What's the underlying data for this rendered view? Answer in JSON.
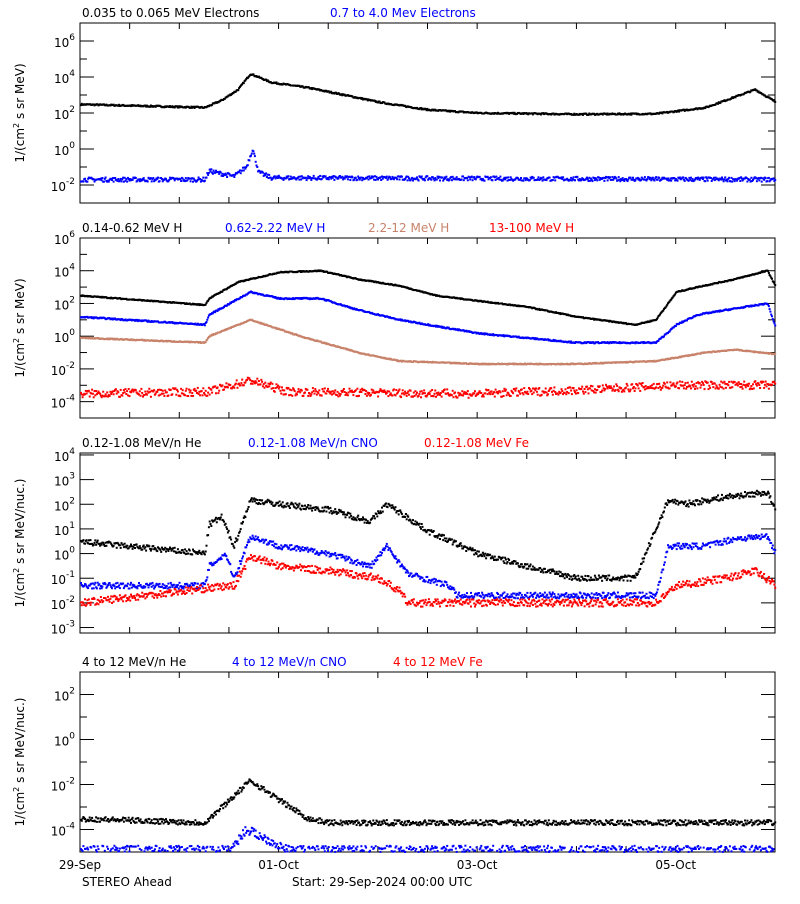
{
  "footer": {
    "spacecraft": "STEREO Ahead",
    "start": "Start: 29-Sep-2024 00:00 UTC"
  },
  "colors": {
    "black": "#000000",
    "blue": "#0000ff",
    "brown": "#c8826a",
    "red": "#ff0000"
  },
  "chart_data": [
    {
      "type": "scatter",
      "ylabel": "1/(cm² s sr MeV)",
      "ylabel_base": "1/(cm",
      "ylabel_sup": "2",
      "ylabel_rest": " s sr MeV)",
      "yscale": "log",
      "ylim": [
        0.001,
        10000000
      ],
      "xlim": [
        "2024-09-29 00:00",
        "2024-10-06 00:00"
      ],
      "yticks": [
        {
          "b": "10",
          "e": "6",
          "v": 1000000.0
        },
        {
          "b": "10",
          "e": "4",
          "v": 10000.0
        },
        {
          "b": "10",
          "e": "2",
          "v": 100.0
        },
        {
          "b": "10",
          "e": "0",
          "v": 1
        },
        {
          "b": "10",
          "e": "-2",
          "v": 0.01
        }
      ],
      "series": [
        {
          "name": "0.035 to 0.065 MeV Electrons",
          "color": "black",
          "points": [
            [
              "2024-09-29 00:00",
              300
            ],
            [
              "2024-09-30 06:00",
              200
            ],
            [
              "2024-09-30 10:00",
              500
            ],
            [
              "2024-09-30 14:00",
              2000
            ],
            [
              "2024-09-30 17:00",
              15000
            ],
            [
              "2024-09-30 22:00",
              5000
            ],
            [
              "2024-10-01 07:00",
              2500
            ],
            [
              "2024-10-01 14:00",
              1200
            ],
            [
              "2024-10-02 00:00",
              400
            ],
            [
              "2024-10-02 12:00",
              150
            ],
            [
              "2024-10-03 00:00",
              100
            ],
            [
              "2024-10-04 00:00",
              85
            ],
            [
              "2024-10-04 19:00",
              90
            ],
            [
              "2024-10-05 07:00",
              200
            ],
            [
              "2024-10-05 19:00",
              2000
            ],
            [
              "2024-10-06 00:00",
              400
            ]
          ]
        },
        {
          "name": "0.7 to 4.0 Mev Electrons",
          "color": "blue",
          "points": [
            [
              "2024-09-29 00:00",
              0.02
            ],
            [
              "2024-09-30 06:00",
              0.02
            ],
            [
              "2024-09-30 07:00",
              0.06
            ],
            [
              "2024-09-30 13:00",
              0.03
            ],
            [
              "2024-09-30 16:00",
              0.1
            ],
            [
              "2024-09-30 17:30",
              1
            ],
            [
              "2024-09-30 19:00",
              0.05
            ],
            [
              "2024-09-30 22:00",
              0.025
            ],
            [
              "2024-10-06 00:00",
              0.02
            ]
          ]
        }
      ]
    },
    {
      "type": "scatter",
      "ylabel_base": "1/(cm",
      "ylabel_sup": "2",
      "ylabel_rest": " s sr MeV)",
      "yscale": "log",
      "ylim": [
        1e-05,
        1000000
      ],
      "xlim": [
        "2024-09-29 00:00",
        "2024-10-06 00:00"
      ],
      "yticks": [
        {
          "b": "10",
          "e": "6",
          "v": 1000000.0
        },
        {
          "b": "10",
          "e": "4",
          "v": 10000.0
        },
        {
          "b": "10",
          "e": "2",
          "v": 100.0
        },
        {
          "b": "10",
          "e": "0",
          "v": 1
        },
        {
          "b": "10",
          "e": "-2",
          "v": 0.01
        },
        {
          "b": "10",
          "e": "-4",
          "v": 0.0001
        }
      ],
      "series": [
        {
          "name": "0.14-0.62 MeV H",
          "color": "black",
          "points": [
            [
              "2024-09-29 00:00",
              300
            ],
            [
              "2024-09-30 06:00",
              80
            ],
            [
              "2024-09-30 07:00",
              200
            ],
            [
              "2024-09-30 14:00",
              2000
            ],
            [
              "2024-10-01 00:00",
              8000
            ],
            [
              "2024-10-01 10:00",
              10000
            ],
            [
              "2024-10-01 19:00",
              3000
            ],
            [
              "2024-10-02 05:00",
              1200
            ],
            [
              "2024-10-02 14:00",
              300
            ],
            [
              "2024-10-03 12:00",
              60
            ],
            [
              "2024-10-04 00:00",
              15
            ],
            [
              "2024-10-04 14:00",
              5
            ],
            [
              "2024-10-04 19:00",
              10
            ],
            [
              "2024-10-05 00:00",
              500
            ],
            [
              "2024-10-05 05:00",
              1000
            ],
            [
              "2024-10-05 14:00",
              3000
            ],
            [
              "2024-10-05 22:00",
              10000
            ],
            [
              "2024-10-06 00:00",
              1000
            ]
          ]
        },
        {
          "name": "0.62-2.22 MeV H",
          "color": "blue",
          "points": [
            [
              "2024-09-29 00:00",
              15
            ],
            [
              "2024-09-30 06:00",
              5
            ],
            [
              "2024-09-30 07:00",
              20
            ],
            [
              "2024-09-30 17:00",
              500
            ],
            [
              "2024-10-01 00:00",
              200
            ],
            [
              "2024-10-01 10:00",
              200
            ],
            [
              "2024-10-01 19:00",
              40
            ],
            [
              "2024-10-02 05:00",
              10
            ],
            [
              "2024-10-03 00:00",
              1.5
            ],
            [
              "2024-10-04 00:00",
              0.4
            ],
            [
              "2024-10-04 19:00",
              0.4
            ],
            [
              "2024-10-05 00:00",
              5
            ],
            [
              "2024-10-05 05:00",
              20
            ],
            [
              "2024-10-05 12:00",
              40
            ],
            [
              "2024-10-05 22:00",
              100
            ],
            [
              "2024-10-06 00:00",
              3
            ]
          ]
        },
        {
          "name": "2.2-12 MeV H",
          "color": "brown",
          "points": [
            [
              "2024-09-29 00:00",
              0.8
            ],
            [
              "2024-09-30 06:00",
              0.4
            ],
            [
              "2024-09-30 07:00",
              1
            ],
            [
              "2024-09-30 17:00",
              10
            ],
            [
              "2024-10-01 05:00",
              1
            ],
            [
              "2024-10-01 19:00",
              0.1
            ],
            [
              "2024-10-02 05:00",
              0.03
            ],
            [
              "2024-10-03 00:00",
              0.02
            ],
            [
              "2024-10-04 00:00",
              0.02
            ],
            [
              "2024-10-04 19:00",
              0.03
            ],
            [
              "2024-10-05 07:00",
              0.1
            ],
            [
              "2024-10-05 14:00",
              0.15
            ],
            [
              "2024-10-06 00:00",
              0.08
            ]
          ]
        },
        {
          "name": "13-100 MeV H",
          "color": "red",
          "points": [
            [
              "2024-09-29 00:00",
              0.0003
            ],
            [
              "2024-09-30 07:00",
              0.0004
            ],
            [
              "2024-09-30 17:00",
              0.002
            ],
            [
              "2024-10-01 02:00",
              0.0004
            ],
            [
              "2024-10-03 00:00",
              0.0003
            ],
            [
              "2024-10-04 00:00",
              0.0005
            ],
            [
              "2024-10-05 00:00",
              0.001
            ],
            [
              "2024-10-06 00:00",
              0.001
            ]
          ]
        }
      ]
    },
    {
      "type": "scatter",
      "ylabel_base": "1/(cm",
      "ylabel_sup": "2",
      "ylabel_rest": " s sr MeV/nuc.)",
      "yscale": "log",
      "ylim": [
        0.0006,
        12000
      ],
      "xlim": [
        "2024-09-29 00:00",
        "2024-10-06 00:00"
      ],
      "yticks": [
        {
          "b": "10",
          "e": "4",
          "v": 10000.0
        },
        {
          "b": "10",
          "e": "3",
          "v": 1000.0
        },
        {
          "b": "10",
          "e": "2",
          "v": 100.0
        },
        {
          "b": "10",
          "e": "1",
          "v": 10
        },
        {
          "b": "10",
          "e": "0",
          "v": 1
        },
        {
          "b": "10",
          "e": "-1",
          "v": 0.1
        },
        {
          "b": "10",
          "e": "-2",
          "v": 0.01
        },
        {
          "b": "10",
          "e": "-3",
          "v": 0.001
        }
      ],
      "series": [
        {
          "name": "0.12-1.08 MeV/n He",
          "color": "black",
          "points": [
            [
              "2024-09-29 00:00",
              3
            ],
            [
              "2024-09-30 06:00",
              1
            ],
            [
              "2024-09-30 07:00",
              15
            ],
            [
              "2024-09-30 10:00",
              30
            ],
            [
              "2024-09-30 13:00",
              2
            ],
            [
              "2024-09-30 17:00",
              150
            ],
            [
              "2024-10-01 00:00",
              100
            ],
            [
              "2024-10-01 12:00",
              60
            ],
            [
              "2024-10-01 22:00",
              20
            ],
            [
              "2024-10-02 02:00",
              100
            ],
            [
              "2024-10-02 12:00",
              8
            ],
            [
              "2024-10-03 00:00",
              1
            ],
            [
              "2024-10-03 12:00",
              0.3
            ],
            [
              "2024-10-04 00:00",
              0.1
            ],
            [
              "2024-10-04 14:00",
              0.1
            ],
            [
              "2024-10-04 22:00",
              150
            ],
            [
              "2024-10-05 02:00",
              100
            ],
            [
              "2024-10-05 12:00",
              200
            ],
            [
              "2024-10-05 22:00",
              300
            ],
            [
              "2024-10-06 00:00",
              50
            ]
          ]
        },
        {
          "name": "0.12-1.08 MeV/n CNO",
          "color": "blue",
          "points": [
            [
              "2024-09-29 00:00",
              0.05
            ],
            [
              "2024-09-30 06:00",
              0.05
            ],
            [
              "2024-09-30 07:00",
              0.3
            ],
            [
              "2024-09-30 11:00",
              1
            ],
            [
              "2024-09-30 13:00",
              0.1
            ],
            [
              "2024-09-30 17:00",
              5
            ],
            [
              "2024-10-01 00:00",
              2
            ],
            [
              "2024-10-01 12:00",
              1
            ],
            [
              "2024-10-01 22:00",
              0.3
            ],
            [
              "2024-10-02 02:00",
              2
            ],
            [
              "2024-10-02 07:00",
              0.15
            ],
            [
              "2024-10-02 17:00",
              0.05
            ],
            [
              "2024-10-02 19:00",
              0.02
            ],
            [
              "2024-10-04 19:00",
              0.02
            ],
            [
              "2024-10-04 22:00",
              2
            ],
            [
              "2024-10-05 07:00",
              2
            ],
            [
              "2024-10-05 14:00",
              4
            ],
            [
              "2024-10-05 22:00",
              5
            ],
            [
              "2024-10-06 00:00",
              1
            ]
          ]
        },
        {
          "name": "0.12-1.08 MeV Fe",
          "color": "red",
          "points": [
            [
              "2024-09-29 00:00",
              0.01
            ],
            [
              "2024-09-30 07:00",
              0.04
            ],
            [
              "2024-09-30 13:00",
              0.05
            ],
            [
              "2024-09-30 17:00",
              0.8
            ],
            [
              "2024-10-01 00:00",
              0.3
            ],
            [
              "2024-10-01 12:00",
              0.2
            ],
            [
              "2024-10-02 00:00",
              0.1
            ],
            [
              "2024-10-02 05:00",
              0.03
            ],
            [
              "2024-10-02 07:00",
              0.01
            ],
            [
              "2024-10-04 19:00",
              0.01
            ],
            [
              "2024-10-05 00:00",
              0.05
            ],
            [
              "2024-10-05 12:00",
              0.1
            ],
            [
              "2024-10-05 19:00",
              0.2
            ],
            [
              "2024-10-06 00:00",
              0.05
            ]
          ]
        }
      ]
    },
    {
      "type": "scatter",
      "ylabel_base": "1/(cm",
      "ylabel_sup": "2",
      "ylabel_rest": " s sr MeV/nuc.)",
      "yscale": "log",
      "ylim": [
        1e-05,
        1000
      ],
      "xlim": [
        "2024-09-29 00:00",
        "2024-10-06 00:00"
      ],
      "yticks": [
        {
          "b": "10",
          "e": "2",
          "v": 100.0
        },
        {
          "b": "10",
          "e": "0",
          "v": 1
        },
        {
          "b": "10",
          "e": "-2",
          "v": 0.01
        },
        {
          "b": "10",
          "e": "-4",
          "v": 0.0001
        }
      ],
      "series": [
        {
          "name": "4 to 12 MeV/n He",
          "color": "black",
          "points": [
            [
              "2024-09-29 00:00",
              0.0003
            ],
            [
              "2024-09-30 06:00",
              0.0002
            ],
            [
              "2024-09-30 17:00",
              0.015
            ],
            [
              "2024-10-01 00:00",
              0.002
            ],
            [
              "2024-10-01 07:00",
              0.0003
            ],
            [
              "2024-10-01 12:00",
              0.0002
            ],
            [
              "2024-10-06 00:00",
              0.0002
            ]
          ]
        },
        {
          "name": "4 to 12 MeV/n CNO",
          "color": "blue",
          "points": [
            [
              "2024-09-29 00:00",
              1.2e-05
            ],
            [
              "2024-09-30 12:00",
              1.2e-05
            ],
            [
              "2024-09-30 16:00",
              0.0001
            ],
            [
              "2024-09-30 22:00",
              3e-05
            ],
            [
              "2024-10-01 02:00",
              1.2e-05
            ],
            [
              "2024-10-06 00:00",
              1.2e-05
            ]
          ]
        },
        {
          "name": "4 to 12 MeV Fe",
          "color": "red",
          "points": []
        }
      ]
    }
  ],
  "xticks": [
    {
      "label": "29-Sep",
      "date": "2024-09-29 00:00"
    },
    {
      "label": "01-Oct",
      "date": "2024-10-01 00:00"
    },
    {
      "label": "03-Oct",
      "date": "2024-10-03 00:00"
    },
    {
      "label": "05-Oct",
      "date": "2024-10-05 00:00"
    }
  ]
}
